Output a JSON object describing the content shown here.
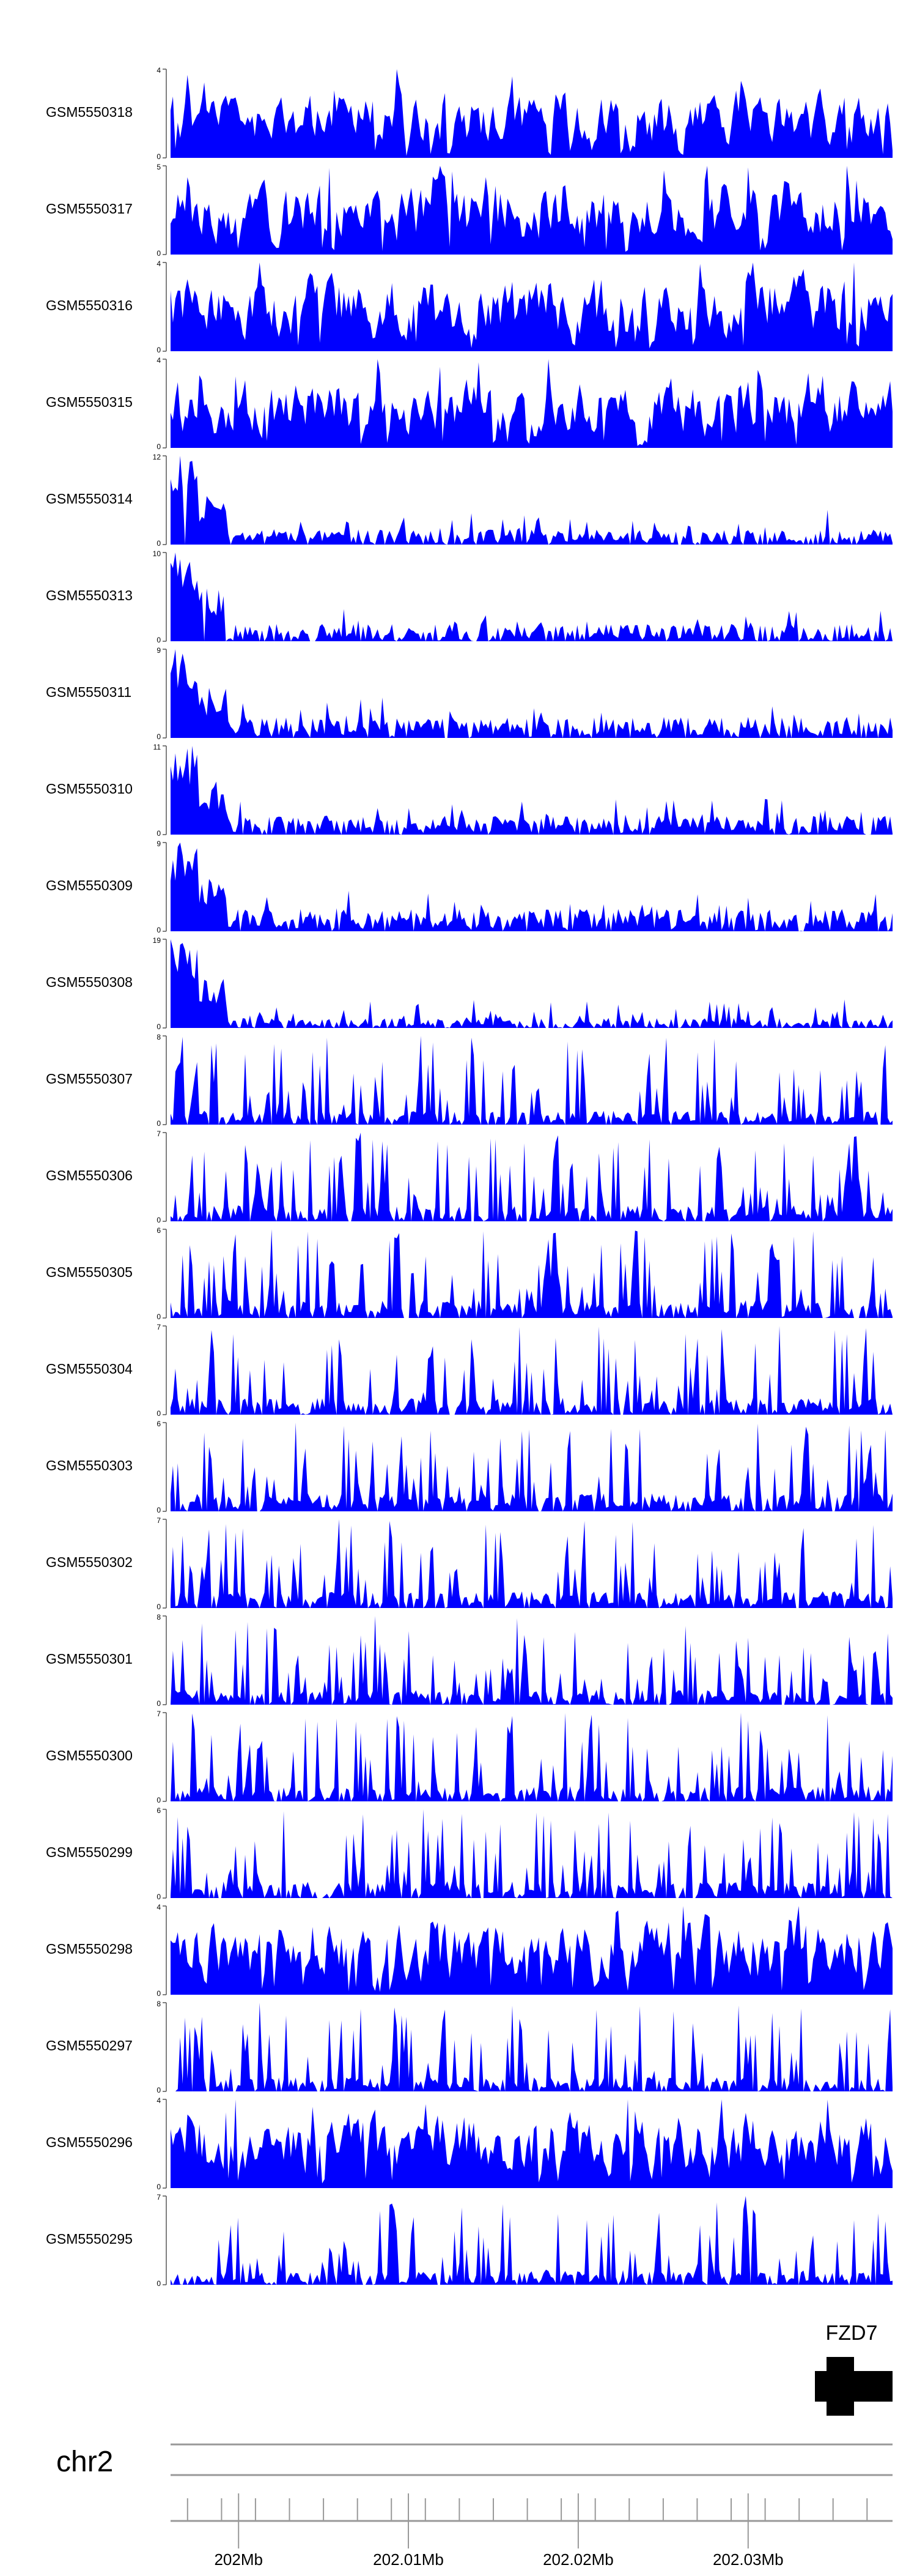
{
  "chart_data": {
    "type": "area",
    "fill_color": "#0000ff",
    "axis_color": "#000000",
    "tracks": [
      {
        "name": "GSM5550318",
        "ymax": "4",
        "ymin": "0",
        "vmax": 4,
        "seed": 318,
        "style": "dense",
        "level": 0.42
      },
      {
        "name": "GSM5550317",
        "ymax": "5",
        "ymin": "0",
        "vmax": 5,
        "seed": 317,
        "style": "dense",
        "level": 0.45
      },
      {
        "name": "GSM5550316",
        "ymax": "4",
        "ymin": "0",
        "vmax": 4,
        "seed": 316,
        "style": "dense",
        "level": 0.5
      },
      {
        "name": "GSM5550315",
        "ymax": "4",
        "ymin": "0",
        "vmax": 4,
        "seed": 315,
        "style": "dense",
        "level": 0.45
      },
      {
        "name": "GSM5550314",
        "ymax": "12",
        "ymin": "0",
        "vmax": 12,
        "seed": 314,
        "style": "decay",
        "level": 0.12
      },
      {
        "name": "GSM5550313",
        "ymax": "10",
        "ymin": "0",
        "vmax": 10,
        "seed": 313,
        "style": "decay",
        "level": 0.14
      },
      {
        "name": "GSM5550311",
        "ymax": "9",
        "ymin": "0",
        "vmax": 9,
        "seed": 311,
        "style": "decay",
        "level": 0.17
      },
      {
        "name": "GSM5550310",
        "ymax": "11",
        "ymin": "0",
        "vmax": 11,
        "seed": 310,
        "style": "decay",
        "level": 0.15
      },
      {
        "name": "GSM5550309",
        "ymax": "9",
        "ymin": "0",
        "vmax": 9,
        "seed": 309,
        "style": "decay",
        "level": 0.18
      },
      {
        "name": "GSM5550308",
        "ymax": "19",
        "ymin": "0",
        "vmax": 19,
        "seed": 308,
        "style": "decay",
        "level": 0.08
      },
      {
        "name": "GSM5550307",
        "ymax": "8",
        "ymin": "0",
        "vmax": 8,
        "seed": 307,
        "style": "spiky",
        "level": 0.35
      },
      {
        "name": "GSM5550306",
        "ymax": "7",
        "ymin": "0",
        "vmax": 7,
        "seed": 306,
        "style": "spiky",
        "level": 0.4
      },
      {
        "name": "GSM5550305",
        "ymax": "6",
        "ymin": "0",
        "vmax": 6,
        "seed": 305,
        "style": "spiky",
        "level": 0.45
      },
      {
        "name": "GSM5550304",
        "ymax": "7",
        "ymin": "0",
        "vmax": 7,
        "seed": 304,
        "style": "spiky",
        "level": 0.42
      },
      {
        "name": "GSM5550303",
        "ymax": "6",
        "ymin": "0",
        "vmax": 6,
        "seed": 303,
        "style": "spiky",
        "level": 0.45
      },
      {
        "name": "GSM5550302",
        "ymax": "7",
        "ymin": "0",
        "vmax": 7,
        "seed": 302,
        "style": "spiky",
        "level": 0.42
      },
      {
        "name": "GSM5550301",
        "ymax": "8",
        "ymin": "0",
        "vmax": 8,
        "seed": 301,
        "style": "spiky",
        "level": 0.38
      },
      {
        "name": "GSM5550300",
        "ymax": "7",
        "ymin": "0",
        "vmax": 7,
        "seed": 300,
        "style": "spiky",
        "level": 0.38
      },
      {
        "name": "GSM5550299",
        "ymax": "6",
        "ymin": "0",
        "vmax": 6,
        "seed": 299,
        "style": "spiky",
        "level": 0.42
      },
      {
        "name": "GSM5550298",
        "ymax": "4",
        "ymin": "0",
        "vmax": 4,
        "seed": 298,
        "style": "dense",
        "level": 0.5
      },
      {
        "name": "GSM5550297",
        "ymax": "8",
        "ymin": "0",
        "vmax": 8,
        "seed": 297,
        "style": "spiky",
        "level": 0.35
      },
      {
        "name": "GSM5550296",
        "ymax": "4",
        "ymin": "0",
        "vmax": 4,
        "seed": 296,
        "style": "dense",
        "level": 0.5
      },
      {
        "name": "GSM5550295",
        "ymax": "7",
        "ymin": "0",
        "vmax": 7,
        "seed": 295,
        "style": "spiky",
        "level": 0.38
      }
    ],
    "gene": {
      "name": "FZD7"
    },
    "chromosome": "chr2",
    "axis_ticks": [
      {
        "label": "202Mb",
        "pos": 202.0
      },
      {
        "label": "202.01Mb",
        "pos": 202.01
      },
      {
        "label": "202.02Mb",
        "pos": 202.02
      },
      {
        "label": "202.03Mb",
        "pos": 202.03
      }
    ],
    "xlim": [
      201.996,
      202.0385
    ]
  }
}
